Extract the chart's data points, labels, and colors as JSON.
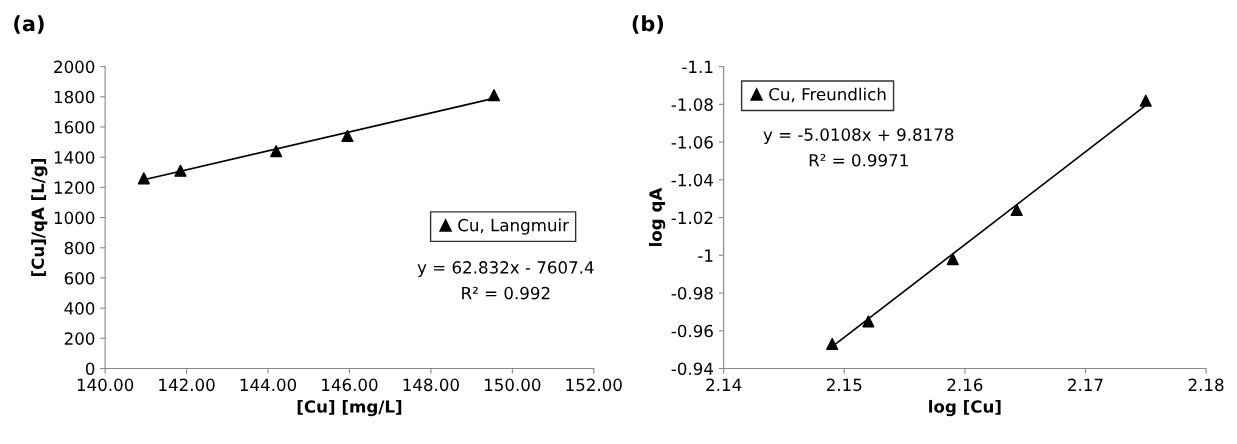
{
  "chart_data": [
    {
      "type": "scatter",
      "title": "(a)",
      "xlabel": "[Cu] [mg/L]",
      "ylabel": "[Cu]/qA [L/g]",
      "series": [
        {
          "name": "Cu, Langmuir",
          "color": "#000000",
          "x": [
            140.95,
            141.85,
            144.2,
            145.95,
            149.55
          ],
          "values": [
            1260,
            1310,
            1440,
            1540,
            1810
          ]
        },
        {
          "type": "line",
          "color": "#000000",
          "marker": "none",
          "x": [
            140.95,
            149.55
          ],
          "values": [
            1250,
            1790
          ]
        }
      ],
      "xlim": [
        140,
        152
      ],
      "xticks": [
        {
          "value": 140,
          "label": "140.00"
        },
        {
          "value": 142,
          "label": "142.00"
        },
        {
          "value": 144,
          "label": "144.00"
        },
        {
          "value": 146,
          "label": "146.00"
        },
        {
          "value": 148,
          "label": "148.00"
        },
        {
          "value": 150,
          "label": "150.00"
        },
        {
          "value": 152,
          "label": "152.00"
        }
      ],
      "ylim": [
        0,
        2000
      ],
      "yticks": [
        0,
        200,
        400,
        600,
        800,
        1000,
        1200,
        1400,
        1600,
        1800,
        2000
      ],
      "annotations": [
        "y = 62.832x - 7607.4",
        "R² = 0.992"
      ],
      "legend": "right",
      "marker": "triangle",
      "grid": false
    },
    {
      "type": "scatter",
      "title": "(b)",
      "xlabel": "log [Cu]",
      "ylabel": "log qA",
      "series": [
        {
          "name": "Cu, Freundlich",
          "color": "#000000",
          "x": [
            2.149,
            2.152,
            2.159,
            2.1643,
            2.175
          ],
          "values": [
            -0.953,
            -0.965,
            -0.998,
            -1.024,
            -1.082
          ]
        },
        {
          "type": "line",
          "color": "#000000",
          "marker": "none",
          "x": [
            2.149,
            2.175
          ],
          "values": [
            -0.9516,
            -1.0794
          ]
        }
      ],
      "xlim": [
        2.14,
        2.18
      ],
      "xticks": [
        2.14,
        2.15,
        2.16,
        2.17,
        2.18
      ],
      "ylim": [
        -0.94,
        -1.1
      ],
      "yticks": [
        -0.94,
        -0.96,
        -0.98,
        -1,
        -1.02,
        -1.04,
        -1.06,
        -1.08,
        -1.1
      ],
      "annotations": [
        "y = -5.0108x + 9.8178",
        "R² = 0.9971"
      ],
      "legend": "top left",
      "marker": "triangle",
      "grid": false
    }
  ]
}
